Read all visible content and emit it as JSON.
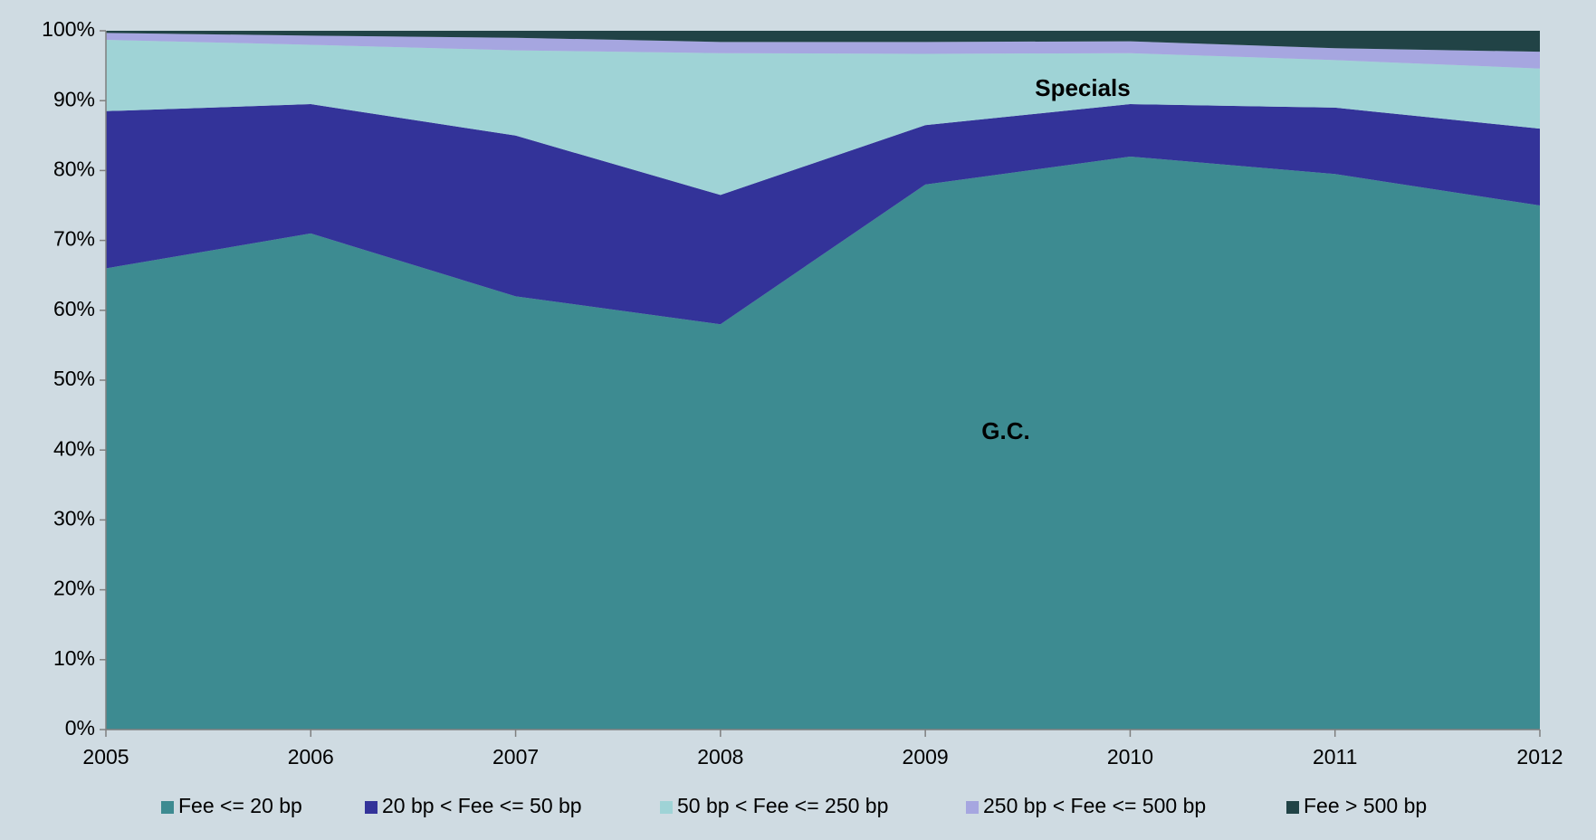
{
  "chart_data": {
    "type": "stacked_area",
    "categories": [
      "2005",
      "2006",
      "2007",
      "2008",
      "2009",
      "2010",
      "2011",
      "2012"
    ],
    "series": [
      {
        "name": "Fee <= 20 bp",
        "color": "#3d8b91",
        "values": [
          66,
          71,
          62,
          58,
          78,
          82,
          79.5,
          75
        ]
      },
      {
        "name": "20 bp < Fee <= 50 bp",
        "color": "#333399",
        "values": [
          22.5,
          18.5,
          23,
          18.5,
          8.5,
          7.5,
          9.5,
          11
        ]
      },
      {
        "name": "50 bp < Fee <= 250 bp",
        "color": "#9fd3d6",
        "values": [
          10.2,
          8.5,
          12.2,
          20.3,
          10.2,
          7.3,
          6.8,
          8.6
        ]
      },
      {
        "name": "250 bp < Fee <= 500 bp",
        "color": "#a6a6e0",
        "values": [
          1,
          1.3,
          1.8,
          1.6,
          1.7,
          1.7,
          1.7,
          2.4
        ]
      },
      {
        "name": "Fee > 500 bp",
        "color": "#214346",
        "values": [
          0.3,
          0.7,
          1,
          1.6,
          1.6,
          1.5,
          2.5,
          3
        ]
      }
    ],
    "ylim": [
      0,
      100
    ],
    "yticks": [
      {
        "value": 0,
        "label": "0%"
      },
      {
        "value": 10,
        "label": "10%"
      },
      {
        "value": 20,
        "label": "20%"
      },
      {
        "value": 30,
        "label": "30%"
      },
      {
        "value": 40,
        "label": "40%"
      },
      {
        "value": 50,
        "label": "50%"
      },
      {
        "value": 60,
        "label": "60%"
      },
      {
        "value": 70,
        "label": "70%"
      },
      {
        "value": 80,
        "label": "80%"
      },
      {
        "value": 90,
        "label": "90%"
      },
      {
        "value": 100,
        "label": "100%"
      }
    ],
    "grid": false,
    "legend": "bottom",
    "annotations": [
      "Specials",
      "G.C."
    ]
  }
}
